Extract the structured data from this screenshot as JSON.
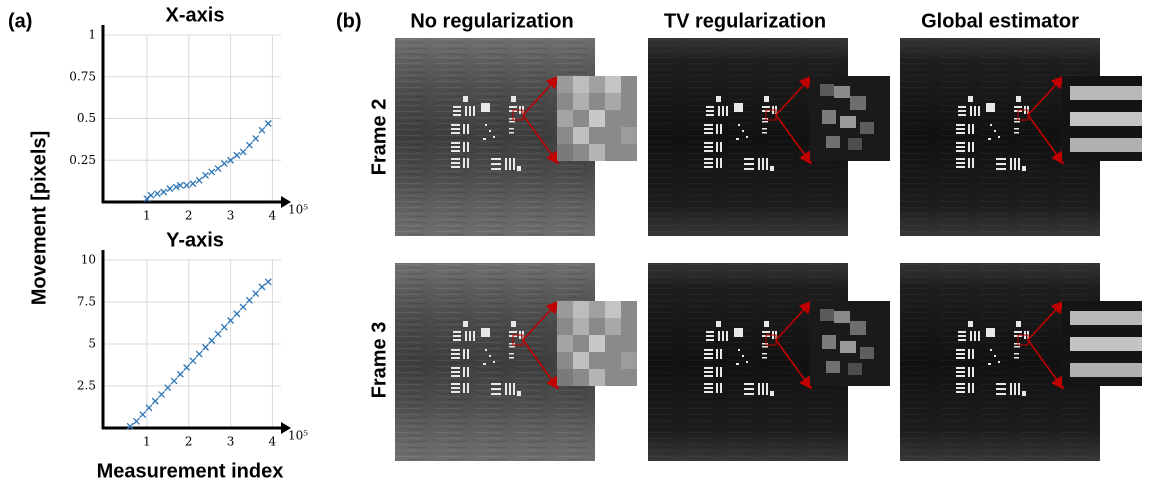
{
  "figure": {
    "panel_a_label": "(a)",
    "y_label": "Movement [pixels]",
    "x_label": "Measurement index",
    "panel_b_label": "(b)",
    "columns": [
      "No regularization",
      "TV regularization",
      "Global estimator"
    ],
    "rows": [
      "Frame 2",
      "Frame 3"
    ]
  },
  "chart_data": [
    {
      "type": "scatter",
      "title": "X-axis",
      "marker": "x",
      "color": "#2e75b6",
      "grid": true,
      "x": [
        1.0,
        1.1,
        1.25,
        1.4,
        1.55,
        1.7,
        1.8,
        1.95,
        2.1,
        2.25,
        2.4,
        2.55,
        2.7,
        2.85,
        3.0,
        3.15,
        3.3,
        3.45,
        3.6,
        3.75,
        3.9
      ],
      "values": [
        0.02,
        0.04,
        0.05,
        0.06,
        0.08,
        0.09,
        0.1,
        0.1,
        0.11,
        0.13,
        0.16,
        0.18,
        0.2,
        0.23,
        0.25,
        0.28,
        0.3,
        0.34,
        0.38,
        0.43,
        0.47
      ],
      "xlim": [
        0,
        4.3
      ],
      "ylim": [
        0,
        1
      ],
      "xticks": [
        1,
        2,
        3,
        4
      ],
      "yticks": [
        0.25,
        0.5,
        0.75,
        1
      ],
      "x_scale_label": "10⁵"
    },
    {
      "type": "scatter",
      "title": "Y-axis",
      "marker": "x",
      "color": "#2e75b6",
      "grid": true,
      "x": [
        0.6,
        0.75,
        0.9,
        1.05,
        1.2,
        1.35,
        1.5,
        1.65,
        1.8,
        1.95,
        2.1,
        2.25,
        2.4,
        2.55,
        2.7,
        2.85,
        3.0,
        3.15,
        3.3,
        3.45,
        3.6,
        3.75,
        3.9
      ],
      "values": [
        0.1,
        0.4,
        0.8,
        1.2,
        1.6,
        2.0,
        2.4,
        2.8,
        3.2,
        3.6,
        4.0,
        4.4,
        4.8,
        5.2,
        5.6,
        6.0,
        6.4,
        6.8,
        7.2,
        7.6,
        8.0,
        8.4,
        8.7
      ],
      "xlim": [
        0,
        4.3
      ],
      "ylim": [
        0,
        10
      ],
      "xticks": [
        1,
        2,
        3,
        4
      ],
      "yticks": [
        2.5,
        5,
        7.5,
        10
      ],
      "x_scale_label": "10⁵"
    }
  ]
}
